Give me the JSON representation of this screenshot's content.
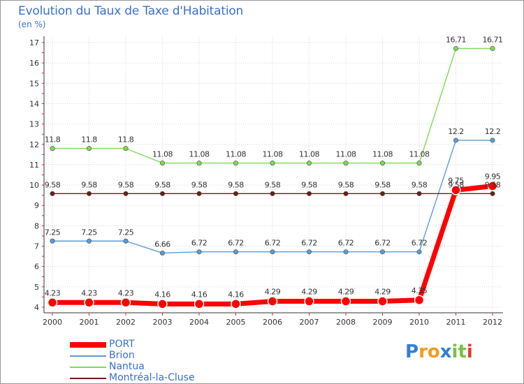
{
  "chart_data": {
    "type": "line",
    "title": "Evolution du Taux de Taxe d'Habitation",
    "unit_label": "(en %)",
    "xlabel": "",
    "ylabel": "",
    "categories": [
      "2000",
      "2001",
      "2002",
      "2003",
      "2004",
      "2005",
      "2006",
      "2007",
      "2008",
      "2009",
      "2010",
      "2011",
      "2012"
    ],
    "ylim": [
      4,
      17
    ],
    "yticks": [
      "4",
      "5",
      "6",
      "7",
      "8",
      "9",
      "10",
      "11",
      "12",
      "13",
      "14",
      "15",
      "16",
      "17"
    ],
    "series": [
      {
        "name": "PORT",
        "color": "#ff0000",
        "values": [
          4.23,
          4.23,
          4.23,
          4.16,
          4.16,
          4.16,
          4.29,
          4.29,
          4.29,
          4.29,
          4.35,
          9.75,
          9.95
        ],
        "labels": [
          "4.23",
          "4.23",
          "4.23",
          "4.16",
          "4.16",
          "4.16",
          "4.29",
          "4.29",
          "4.29",
          "4.29",
          "4.35",
          "9.75",
          "9.95"
        ]
      },
      {
        "name": "Brion",
        "color": "#5b9bd5",
        "values": [
          7.25,
          7.25,
          7.25,
          6.66,
          6.72,
          6.72,
          6.72,
          6.72,
          6.72,
          6.72,
          6.72,
          12.2,
          12.2
        ],
        "labels": [
          "7.25",
          "7.25",
          "7.25",
          "6.66",
          "6.72",
          "6.72",
          "6.72",
          "6.72",
          "6.72",
          "6.72",
          "6.72",
          "12.2",
          "12.2"
        ]
      },
      {
        "name": "Nantua",
        "color": "#7ed957",
        "values": [
          11.8,
          11.8,
          11.8,
          11.08,
          11.08,
          11.08,
          11.08,
          11.08,
          11.08,
          11.08,
          11.08,
          16.71,
          16.71
        ],
        "labels": [
          "11.8",
          "11.8",
          "11.8",
          "11.08",
          "11.08",
          "11.08",
          "11.08",
          "11.08",
          "11.08",
          "11.08",
          "11.08",
          "16.71",
          "16.71"
        ]
      },
      {
        "name": "Montréal-la-Cluse",
        "color": "#6b1e1e",
        "values": [
          9.58,
          9.58,
          9.58,
          9.58,
          9.58,
          9.58,
          9.58,
          9.58,
          9.58,
          9.58,
          9.58,
          9.58,
          9.58
        ],
        "labels": [
          "9.58",
          "9.58",
          "9.58",
          "9.58",
          "9.58",
          "9.58",
          "9.58",
          "9.58",
          "9.58",
          "9.58",
          "9.58",
          "9.58",
          "9.58"
        ]
      }
    ],
    "legend_position": "bottom-left"
  },
  "logo": {
    "letters": [
      "P",
      "r",
      "o",
      "x",
      "i",
      "t",
      "i"
    ],
    "colors": [
      "#2f7fd8",
      "#f59b1c",
      "#f59b1c",
      "#2f7fd8",
      "#7ac143",
      "#7ac143",
      "#e23b2e"
    ]
  }
}
